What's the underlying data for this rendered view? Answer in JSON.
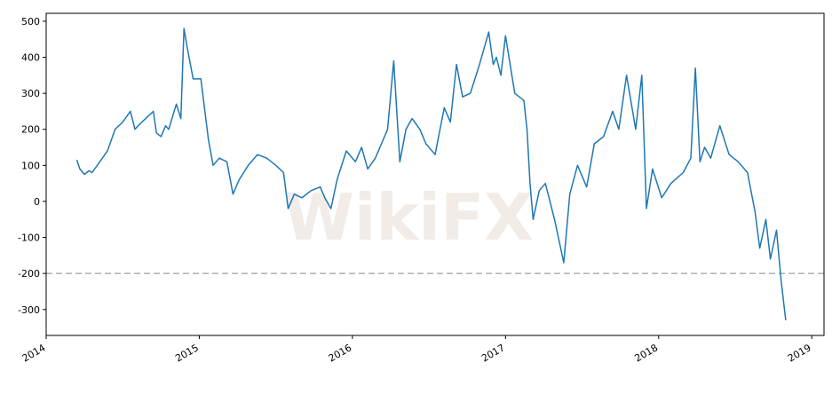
{
  "chart_data": {
    "type": "line",
    "watermark": "WikiFX",
    "x": [
      2014.2,
      2014.22,
      2014.25,
      2014.28,
      2014.3,
      2014.35,
      2014.4,
      2014.45,
      2014.5,
      2014.55,
      2014.58,
      2014.6,
      2014.65,
      2014.7,
      2014.72,
      2014.75,
      2014.78,
      2014.8,
      2014.85,
      2014.88,
      2014.9,
      2014.92,
      2014.96,
      2015.01,
      2015.06,
      2015.09,
      2015.13,
      2015.18,
      2015.22,
      2015.26,
      2015.32,
      2015.38,
      2015.44,
      2015.5,
      2015.55,
      2015.58,
      2015.62,
      2015.67,
      2015.73,
      2015.79,
      2015.82,
      2015.86,
      2015.9,
      2015.96,
      2016.02,
      2016.06,
      2016.1,
      2016.15,
      2016.19,
      2016.23,
      2016.27,
      2016.31,
      2016.35,
      2016.39,
      2016.44,
      2016.48,
      2016.54,
      2016.6,
      2016.64,
      2016.68,
      2016.72,
      2016.77,
      2016.83,
      2016.89,
      2016.92,
      2016.94,
      2016.97,
      2017.0,
      2017.06,
      2017.12,
      2017.14,
      2017.16,
      2017.18,
      2017.22,
      2017.26,
      2017.32,
      2017.38,
      2017.42,
      2017.47,
      2017.53,
      2017.58,
      2017.64,
      2017.7,
      2017.74,
      2017.79,
      2017.85,
      2017.89,
      2017.92,
      2017.96,
      2018.02,
      2018.08,
      2018.16,
      2018.21,
      2018.24,
      2018.27,
      2018.3,
      2018.34,
      2018.4,
      2018.46,
      2018.52,
      2018.58,
      2018.63,
      2018.66,
      2018.7,
      2018.73,
      2018.77,
      2018.8,
      2018.83
    ],
    "values": [
      115,
      90,
      75,
      85,
      80,
      110,
      140,
      200,
      220,
      250,
      200,
      210,
      230,
      250,
      190,
      180,
      210,
      200,
      270,
      230,
      480,
      430,
      340,
      340,
      170,
      100,
      120,
      110,
      20,
      60,
      100,
      130,
      120,
      100,
      80,
      -20,
      20,
      10,
      30,
      40,
      10,
      -20,
      60,
      140,
      110,
      150,
      90,
      120,
      160,
      200,
      390,
      110,
      200,
      230,
      200,
      160,
      130,
      260,
      220,
      380,
      290,
      300,
      380,
      470,
      380,
      400,
      350,
      460,
      300,
      280,
      200,
      50,
      -50,
      30,
      50,
      -50,
      -170,
      20,
      100,
      40,
      160,
      180,
      250,
      200,
      350,
      200,
      350,
      -20,
      90,
      10,
      50,
      80,
      120,
      370,
      110,
      150,
      120,
      210,
      130,
      110,
      80,
      -30,
      -130,
      -50,
      -160,
      -80,
      -220,
      -330
    ],
    "color": "#1f77b4",
    "hline": -200,
    "xlim": [
      2014.0,
      2019.08
    ],
    "xticks": [
      2014,
      2015,
      2016,
      2017,
      2018,
      2019
    ],
    "ylim": [
      -372,
      522
    ],
    "yticks": [
      -300,
      -200,
      -100,
      0,
      100,
      200,
      300,
      400,
      500
    ]
  }
}
